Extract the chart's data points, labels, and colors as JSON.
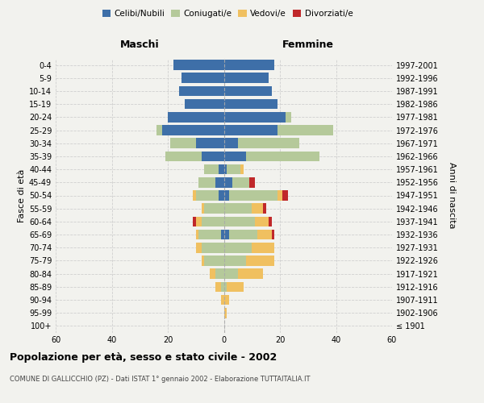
{
  "age_groups": [
    "100+",
    "95-99",
    "90-94",
    "85-89",
    "80-84",
    "75-79",
    "70-74",
    "65-69",
    "60-64",
    "55-59",
    "50-54",
    "45-49",
    "40-44",
    "35-39",
    "30-34",
    "25-29",
    "20-24",
    "15-19",
    "10-14",
    "5-9",
    "0-4"
  ],
  "birth_years": [
    "≤ 1901",
    "1902-1906",
    "1907-1911",
    "1912-1916",
    "1917-1921",
    "1922-1926",
    "1927-1931",
    "1932-1936",
    "1937-1941",
    "1942-1946",
    "1947-1951",
    "1952-1956",
    "1957-1961",
    "1962-1966",
    "1967-1971",
    "1972-1976",
    "1977-1981",
    "1982-1986",
    "1987-1991",
    "1992-1996",
    "1997-2001"
  ],
  "male_celibi": [
    0,
    0,
    0,
    0,
    0,
    0,
    0,
    1,
    0,
    0,
    2,
    3,
    2,
    8,
    10,
    22,
    20,
    14,
    16,
    15,
    18
  ],
  "male_coniugati": [
    0,
    0,
    0,
    1,
    3,
    7,
    8,
    8,
    8,
    7,
    8,
    6,
    5,
    13,
    9,
    2,
    0,
    0,
    0,
    0,
    0
  ],
  "male_vedovi": [
    0,
    0,
    1,
    2,
    2,
    1,
    2,
    1,
    2,
    1,
    1,
    0,
    0,
    0,
    0,
    0,
    0,
    0,
    0,
    0,
    0
  ],
  "male_divorziati": [
    0,
    0,
    0,
    0,
    0,
    0,
    0,
    0,
    1,
    0,
    0,
    0,
    0,
    0,
    0,
    0,
    0,
    0,
    0,
    0,
    0
  ],
  "female_nubili": [
    0,
    0,
    0,
    0,
    0,
    0,
    0,
    2,
    0,
    0,
    2,
    3,
    1,
    8,
    5,
    19,
    22,
    19,
    17,
    16,
    18
  ],
  "female_coniugate": [
    0,
    0,
    0,
    1,
    5,
    8,
    10,
    10,
    11,
    10,
    17,
    6,
    5,
    26,
    22,
    20,
    2,
    0,
    0,
    0,
    0
  ],
  "female_vedove": [
    0,
    1,
    2,
    6,
    9,
    10,
    8,
    5,
    5,
    4,
    2,
    0,
    1,
    0,
    0,
    0,
    0,
    0,
    0,
    0,
    0
  ],
  "female_divorziate": [
    0,
    0,
    0,
    0,
    0,
    0,
    0,
    1,
    1,
    1,
    2,
    2,
    0,
    0,
    0,
    0,
    0,
    0,
    0,
    0,
    0
  ],
  "color_celibi": "#3e6fa8",
  "color_coniugati": "#b5c99a",
  "color_vedovi": "#f0c060",
  "color_divorziati": "#c0282a",
  "xlim": 60,
  "title": "Popolazione per età, sesso e stato civile - 2002",
  "subtitle": "COMUNE DI GALLICCHIO (PZ) - Dati ISTAT 1° gennaio 2002 - Elaborazione TUTTAITALIA.IT",
  "ylabel_left": "Fasce di età",
  "ylabel_right": "Anni di nascita",
  "label_maschi": "Maschi",
  "label_femmine": "Femmine",
  "legend_labels": [
    "Celibi/Nubili",
    "Coniugati/e",
    "Vedovi/e",
    "Divorziati/e"
  ],
  "bg_color": "#f2f2ee",
  "grid_color": "#cccccc"
}
